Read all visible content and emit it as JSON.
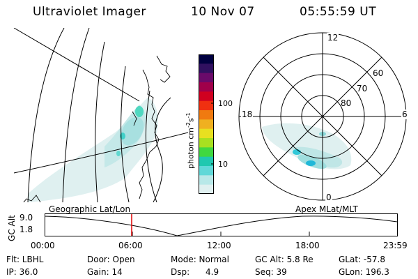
{
  "header": {
    "title": "Ultraviolet Imager",
    "date": "10 Nov 07",
    "time": "05:55:59 UT"
  },
  "colorbar": {
    "label": "photon cm",
    "label_sup1": "-2",
    "label_mid": "s",
    "label_sup2": "-1",
    "ticks": [
      "100",
      "10"
    ],
    "colors": [
      "#000040",
      "#301060",
      "#6a0a6a",
      "#a0004a",
      "#d00020",
      "#f03010",
      "#f07a10",
      "#f0b020",
      "#e8e020",
      "#a8e020",
      "#40d840",
      "#20c8b0",
      "#60d8d8",
      "#b8e8e8",
      "#e0f0f0"
    ]
  },
  "polar_plot": {
    "mlt_labels": [
      "12",
      "18",
      "6",
      "0"
    ],
    "lat_labels": [
      "60",
      "70",
      "80"
    ]
  },
  "geo_panel": {
    "label": "Geographic Lat/Lon"
  },
  "polar_panel": {
    "label": "Apex MLat/MLT"
  },
  "orbit": {
    "y_axis_label": "GC Alt",
    "y_ticks": [
      "9.0",
      "1.8"
    ],
    "x_ticks": [
      "00:00",
      "06:00",
      "12:00",
      "18:00",
      "23:59"
    ],
    "current_time_hours": 5.93
  },
  "status": {
    "flt": "Flt: LBHL",
    "ip": "IP: 36.0",
    "door": "Door: Open",
    "gain": "Gain: 14",
    "mode": "Mode: Normal",
    "dsp": "Dsp:      4.9",
    "gc_alt": "GC Alt: 5.8 Re",
    "seq": "Seq: 39",
    "glat": "GLat: -57.8",
    "glon": "GLon: 196.3"
  },
  "colors": {
    "aurora_faint": "#d8eeee",
    "aurora_mid": "#9edede",
    "aurora_bright": "#30d8c8",
    "aurora_peak": "#20c0d8",
    "marker": "#e00000"
  }
}
